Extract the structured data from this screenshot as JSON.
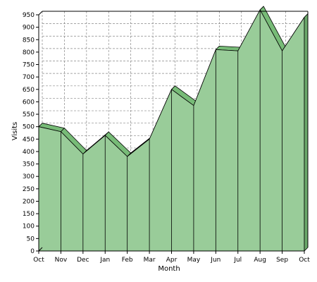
{
  "chart_data": {
    "type": "area",
    "categories": [
      "Oct",
      "Nov",
      "Dec",
      "Jan",
      "Feb",
      "Mar",
      "Apr",
      "May",
      "Jun",
      "Jul",
      "Aug",
      "Sep",
      "Oct"
    ],
    "series": [
      {
        "values": [
          500,
          480,
          390,
          465,
          380,
          450,
          650,
          585,
          810,
          805,
          970,
          805,
          940
        ]
      }
    ],
    "title": "",
    "xlabel": "Month",
    "ylabel": "Visits",
    "ylim": [
      0,
      950
    ],
    "yticks": [
      0,
      50,
      100,
      150,
      200,
      250,
      300,
      350,
      400,
      450,
      500,
      550,
      600,
      650,
      700,
      750,
      800,
      850,
      900,
      950
    ],
    "grid": true,
    "style": "3d",
    "colors": {
      "fill_front": "#99cc99",
      "fill_top": "#77bb77",
      "fill_side": "#6aa86a",
      "line": "#000000",
      "grid": "#888888",
      "plot_bg": "#ffffff"
    }
  }
}
